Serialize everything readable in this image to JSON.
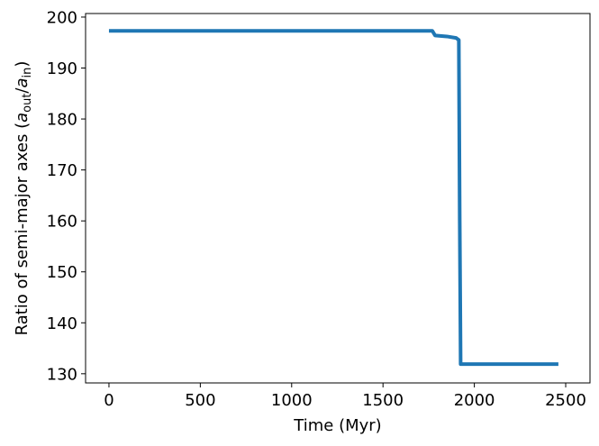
{
  "chart_data": {
    "type": "line",
    "xlabel": "Time (Myr)",
    "ylabel": [
      "Ratio of semi-major axes (",
      "a",
      "out",
      "/",
      "a",
      "in",
      ")"
    ],
    "x": [
      0,
      1770,
      1785,
      1850,
      1900,
      1915,
      1920,
      1925,
      2460
    ],
    "values": [
      197.3,
      197.3,
      196.4,
      196.2,
      195.9,
      195.5,
      160,
      131.9,
      131.9
    ],
    "color": "#1f77b4",
    "xlim": [
      -128,
      2633
    ],
    "xticks": [
      0,
      500,
      1000,
      1500,
      2000,
      2500
    ],
    "ylim": [
      128.2,
      200.7
    ],
    "yticks": [
      130,
      140,
      150,
      160,
      170,
      180,
      190,
      200
    ],
    "grid": false
  }
}
